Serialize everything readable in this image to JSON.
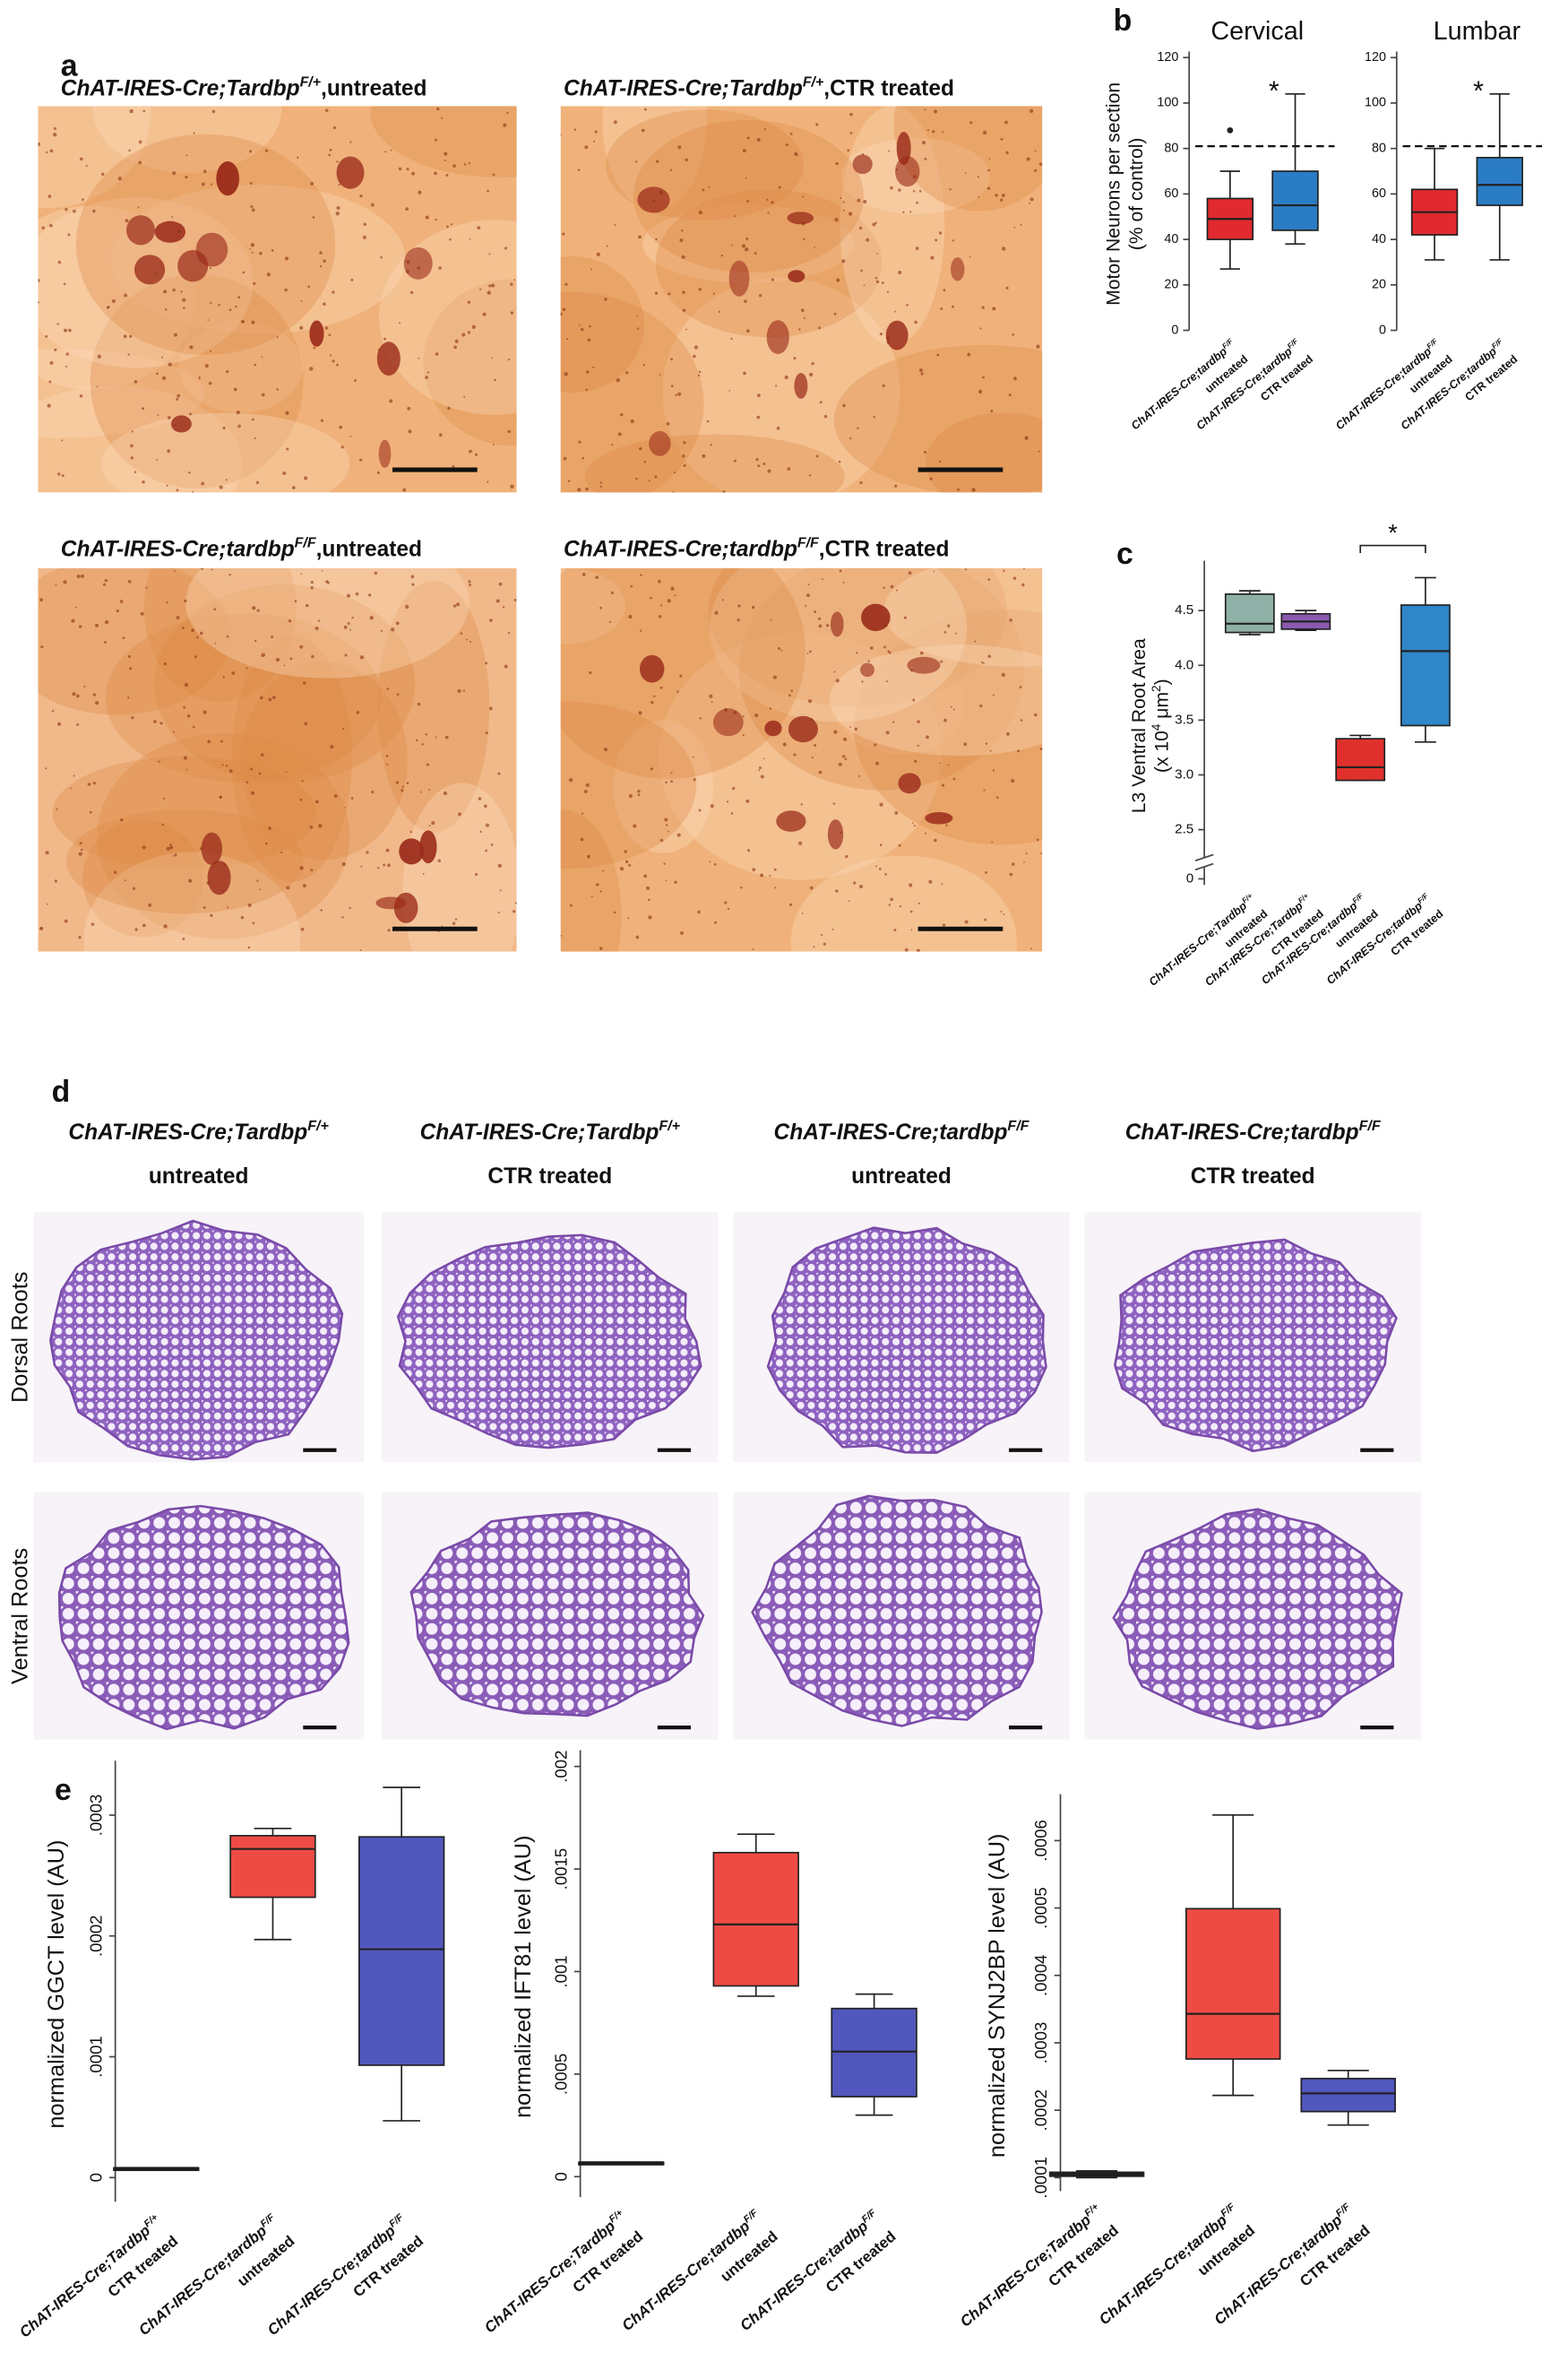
{
  "panel_labels": [
    "a",
    "b",
    "c",
    "d",
    "e"
  ],
  "panel_a": {
    "images": [
      {
        "genotype": "ChAT-IRES-Cre;Tardbp",
        "allele": "F/+",
        "treatment": ",untreated"
      },
      {
        "genotype": "ChAT-IRES-Cre;Tardbp",
        "allele": "F/+",
        "treatment": ",CTR treated"
      },
      {
        "genotype": "ChAT-IRES-Cre;tardbp",
        "allele": "F/F",
        "treatment": ",untreated"
      },
      {
        "genotype": "ChAT-IRES-Cre;tardbp",
        "allele": "F/F",
        "treatment": ",CTR treated"
      }
    ]
  },
  "panel_d": {
    "columns": [
      {
        "genotype": "ChAT-IRES-Cre;Tardbp",
        "allele": "F/+",
        "treatment": "untreated"
      },
      {
        "genotype": "ChAT-IRES-Cre;Tardbp",
        "allele": "F/+",
        "treatment": "CTR treated"
      },
      {
        "genotype": "ChAT-IRES-Cre;tardbp",
        "allele": "F/F",
        "treatment": "untreated"
      },
      {
        "genotype": "ChAT-IRES-Cre;tardbp",
        "allele": "F/F",
        "treatment": "CTR treated"
      }
    ],
    "rows": [
      "Dorsal Roots",
      "Ventral Roots"
    ]
  },
  "chart_data": [
    {
      "type": "box",
      "title": "Cervical",
      "ylabel": "Motor Neurons per section",
      "yunit": [
        "(% of control)"
      ],
      "categories": [
        {
          "genotype": "ChAT-IRES-Cre;tardbp",
          "allele": "F/F",
          "treatment": "untreated"
        },
        {
          "genotype": "ChAT-IRES-Cre;tardbp",
          "allele": "F/F",
          "treatment": "CTR treated"
        }
      ],
      "boxes": [
        {
          "min": 27,
          "q1": 40,
          "median": 49,
          "q3": 58,
          "max": 70,
          "outliers": [
            88
          ]
        },
        {
          "min": 38,
          "q1": 44,
          "median": 55,
          "q3": 70,
          "max": 104
        }
      ],
      "colors": [
        "#e02a2f",
        "#2a7cc4"
      ],
      "ref_line": 81,
      "annotation": "*",
      "ylim": [
        0,
        120
      ],
      "yticks": [
        0,
        20,
        40,
        60,
        80,
        100,
        120
      ]
    },
    {
      "type": "box",
      "title": "Lumbar",
      "categories": [
        {
          "genotype": "ChAT-IRES-Cre;tardbp",
          "allele": "F/F",
          "treatment": "untreated"
        },
        {
          "genotype": "ChAT-IRES-Cre;tardbp",
          "allele": "F/F",
          "treatment": "CTR treated"
        }
      ],
      "boxes": [
        {
          "min": 31,
          "q1": 42,
          "median": 52,
          "q3": 62,
          "max": 80
        },
        {
          "min": 31,
          "q1": 55,
          "median": 64,
          "q3": 76,
          "max": 104
        }
      ],
      "colors": [
        "#e02a2f",
        "#2a7cc4"
      ],
      "ref_line": 81,
      "annotation": "*",
      "ylim": [
        0,
        120
      ],
      "yticks": [
        0,
        20,
        40,
        60,
        80,
        100,
        120
      ]
    },
    {
      "type": "box",
      "ylabel": "L3 Ventral Root Area",
      "yunit": [
        "(x 10",
        "4",
        " μm",
        "2",
        ")"
      ],
      "categories": [
        {
          "genotype": "ChAT-IRES-Cre;Tardbp",
          "allele": "F/+",
          "treatment": "untreated"
        },
        {
          "genotype": "ChAT-IRES-Cre;Tardbp",
          "allele": "F/+",
          "treatment": "CTR treated"
        },
        {
          "genotype": "ChAT-IRES-Cre;tardbp",
          "allele": "F/F",
          "treatment": "untreated"
        },
        {
          "genotype": "ChAT-IRES-Cre;tardbp",
          "allele": "F/F",
          "treatment": "CTR treated"
        }
      ],
      "boxes": [
        {
          "min": 4.28,
          "q1": 4.3,
          "median": 4.38,
          "q3": 4.65,
          "max": 4.68
        },
        {
          "min": 4.32,
          "q1": 4.33,
          "median": 4.4,
          "q3": 4.47,
          "max": 4.5
        },
        {
          "min": 2.95,
          "q1": 2.95,
          "median": 3.07,
          "q3": 3.33,
          "max": 3.36
        },
        {
          "min": 3.3,
          "q1": 3.45,
          "median": 4.13,
          "q3": 4.55,
          "max": 4.8
        }
      ],
      "colors": [
        "#8fb0a6",
        "#8a5ab0",
        "#e0302c",
        "#2f86c8"
      ],
      "annotation": "*",
      "axis_break": true,
      "ylim": [
        2.3,
        4.9
      ],
      "yticks": [
        0,
        2.5,
        {
          "value": 3,
          "label": "3.0"
        },
        3.5,
        {
          "value": 4,
          "label": "4.0"
        },
        4.5
      ]
    },
    {
      "type": "box",
      "ylabel": "normalized GGCT level (AU)",
      "categories": [
        {
          "genotype": "ChAT-IRES-Cre;Tardbp",
          "allele": "F/+",
          "treatment": "CTR treated"
        },
        {
          "genotype": "ChAT-IRES-Cre;tardbp",
          "allele": "F/F",
          "treatment": "untreated"
        },
        {
          "genotype": "ChAT-IRES-Cre;tardbp",
          "allele": "F/F",
          "treatment": "CTR treated"
        }
      ],
      "boxes": [
        {
          "min": 8e-06,
          "q1": 8e-06,
          "median": 8e-06,
          "q3": 8e-06,
          "max": 8e-06
        },
        {
          "min": 0.000197,
          "q1": 0.000232,
          "median": 0.000272,
          "q3": 0.000283,
          "max": 0.000289
        },
        {
          "min": 4.7e-05,
          "q1": 9.3e-05,
          "median": 0.000189,
          "q3": 0.000282,
          "max": 0.000323
        }
      ],
      "colors": [
        "#111111",
        "#ef4b45",
        "#5157bd"
      ],
      "ylim": [
        -2e-05,
        0.00034
      ],
      "yticks": [
        0,
        {
          "value": 0.0001,
          "label": ".0001"
        },
        {
          "value": 0.0002,
          "label": ".0002"
        },
        {
          "value": 0.0003,
          "label": ".0003"
        }
      ]
    },
    {
      "type": "box",
      "ylabel": "normalized IFT81 level (AU)",
      "categories": [
        {
          "genotype": "ChAT-IRES-Cre;Tardbp",
          "allele": "F/+",
          "treatment": "CTR treated"
        },
        {
          "genotype": "ChAT-IRES-Cre;tardbp",
          "allele": "F/F",
          "treatment": "untreated"
        },
        {
          "genotype": "ChAT-IRES-Cre;tardbp",
          "allele": "F/F",
          "treatment": "CTR treated"
        }
      ],
      "boxes": [
        {
          "min": 7e-05,
          "q1": 7e-05,
          "median": 7e-05,
          "q3": 7e-05,
          "max": 7e-05
        },
        {
          "min": 0.00088,
          "q1": 0.00093,
          "median": 0.00123,
          "q3": 0.00158,
          "max": 0.00167
        },
        {
          "min": 0.0003,
          "q1": 0.00039,
          "median": 0.00061,
          "q3": 0.00082,
          "max": 0.00089
        }
      ],
      "colors": [
        "#111111",
        "#ef4b45",
        "#5157bd"
      ],
      "ylim": [
        -0.0001,
        0.00205
      ],
      "yticks": [
        0,
        {
          "value": 0.0005,
          "label": ".0005"
        },
        {
          "value": 0.001,
          "label": ".001"
        },
        {
          "value": 0.0015,
          "label": ".0015"
        },
        {
          "value": 0.002,
          "label": ".002"
        }
      ]
    },
    {
      "type": "box",
      "ylabel": "normalized SYNJ2BP level (AU)",
      "categories": [
        {
          "genotype": "ChAT-IRES-Cre;Tardbp",
          "allele": "F/+",
          "treatment": "CTR treated"
        },
        {
          "genotype": "ChAT-IRES-Cre;tardbp",
          "allele": "F/F",
          "treatment": "untreated"
        },
        {
          "genotype": "ChAT-IRES-Cre;tardbp",
          "allele": "F/F",
          "treatment": "CTR treated"
        }
      ],
      "boxes": [
        {
          "min": 0.0001,
          "q1": 0.000102,
          "median": 0.000105,
          "q3": 0.000108,
          "max": 0.00011
        },
        {
          "min": 0.000222,
          "q1": 0.000276,
          "median": 0.000343,
          "q3": 0.000499,
          "max": 0.000638
        },
        {
          "min": 0.000178,
          "q1": 0.000198,
          "median": 0.000225,
          "q3": 0.000247,
          "max": 0.000259
        }
      ],
      "colors": [
        "#111111",
        "#ef4b45",
        "#5157bd"
      ],
      "ylim": [
        8e-05,
        0.00066
      ],
      "yticks": [
        {
          "value": 0.0001,
          "label": ".0001"
        },
        {
          "value": 0.0002,
          "label": ".0002"
        },
        {
          "value": 0.0003,
          "label": ".0003"
        },
        {
          "value": 0.0004,
          "label": ".0004"
        },
        {
          "value": 0.0005,
          "label": ".0005"
        },
        {
          "value": 0.0006,
          "label": ".0006"
        }
      ]
    }
  ]
}
